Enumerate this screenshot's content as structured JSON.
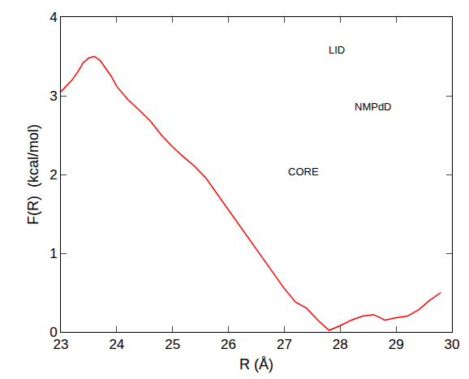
{
  "chart_data": {
    "type": "line",
    "x_label": "R (Å)",
    "y_label": "F(R)  (kcal/mol)",
    "annotations": [
      "LID",
      "NMPdD",
      "CORE"
    ],
    "x": [
      23.0,
      23.1,
      23.2,
      23.3,
      23.4,
      23.5,
      23.6,
      23.7,
      23.8,
      23.9,
      24.0,
      24.2,
      24.4,
      24.6,
      24.8,
      25.0,
      25.2,
      25.4,
      25.6,
      25.8,
      26.0,
      26.2,
      26.4,
      26.6,
      26.8,
      27.0,
      27.2,
      27.4,
      27.6,
      27.8,
      28.0,
      28.2,
      28.4,
      28.6,
      28.8,
      29.0,
      29.2,
      29.4,
      29.6,
      29.8
    ],
    "series": [
      {
        "name": "F(R)",
        "color": "#ff0000",
        "values": [
          3.05,
          3.12,
          3.2,
          3.3,
          3.42,
          3.48,
          3.5,
          3.45,
          3.35,
          3.25,
          3.12,
          2.95,
          2.82,
          2.68,
          2.5,
          2.35,
          2.22,
          2.1,
          1.95,
          1.75,
          1.55,
          1.35,
          1.15,
          0.95,
          0.75,
          0.55,
          0.38,
          0.3,
          0.15,
          0.02,
          0.08,
          0.15,
          0.2,
          0.22,
          0.15,
          0.18,
          0.2,
          0.28,
          0.4,
          0.5
        ]
      }
    ],
    "xlim": [
      23,
      30
    ],
    "xticks": [
      23,
      24,
      25,
      26,
      27,
      28,
      29,
      30
    ],
    "ylim": [
      0,
      4
    ],
    "yticks": [
      0,
      1,
      2,
      3,
      4
    ],
    "grid": false
  }
}
